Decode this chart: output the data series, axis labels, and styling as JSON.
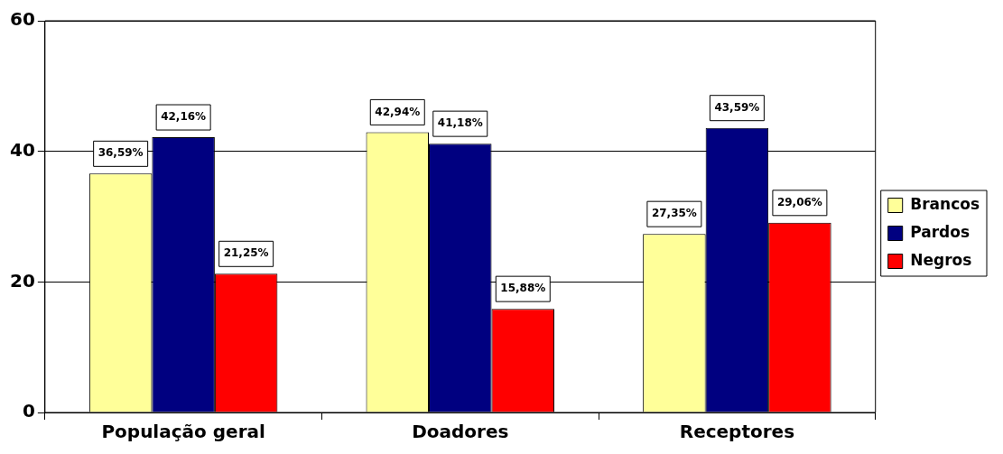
{
  "chart_data": {
    "type": "bar",
    "categories": [
      "População geral",
      "Doadores",
      "Receptores"
    ],
    "series": [
      {
        "name": "Brancos",
        "color": "#ffff99",
        "values": [
          36.59,
          42.94,
          27.35
        ],
        "value_labels": [
          "36,59%",
          "42,94%",
          "27,35%"
        ]
      },
      {
        "name": "Pardos",
        "color": "#000080",
        "values": [
          42.16,
          41.18,
          43.59
        ],
        "value_labels": [
          "42,16%",
          "41,18%",
          "43,59%"
        ]
      },
      {
        "name": "Negros",
        "color": "#ff0000",
        "values": [
          21.25,
          15.88,
          29.06
        ],
        "value_labels": [
          "21,25%",
          "15,88%",
          "29,06%"
        ]
      }
    ],
    "ylim": [
      0,
      60
    ],
    "yticks": [
      0,
      20,
      40,
      60
    ],
    "grid": "y",
    "legend": "right"
  }
}
